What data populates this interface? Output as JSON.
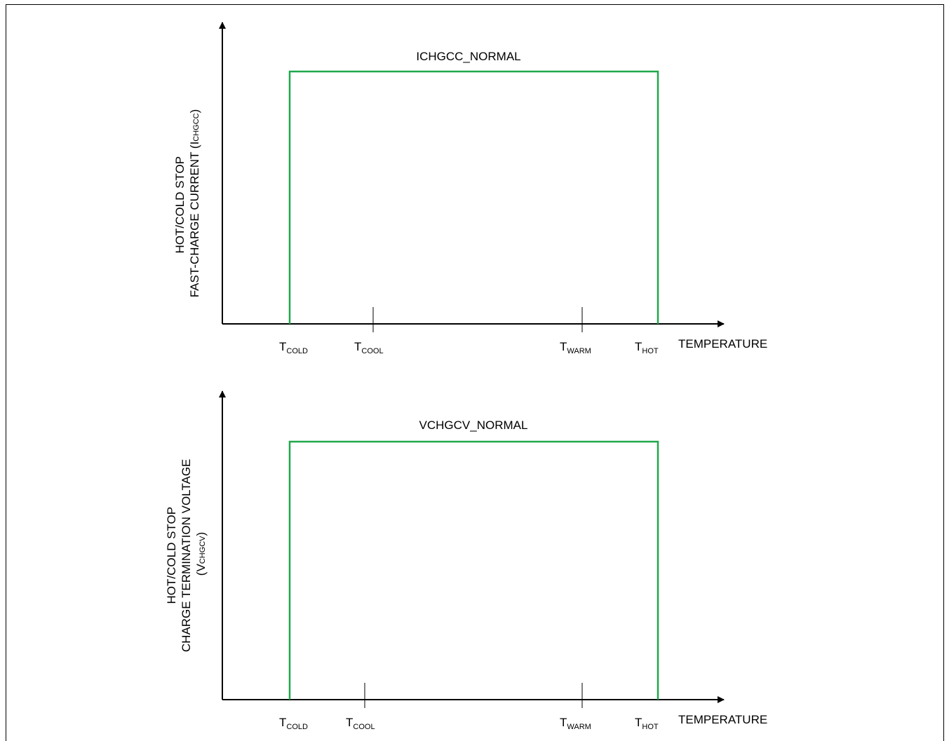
{
  "colors": {
    "curve": "#1fa84a",
    "axis": "#000000",
    "frame": "#000000"
  },
  "chart_data": [
    {
      "type": "line",
      "title": "",
      "ylabel_lines": [
        "HOT/COLD STOP",
        "FAST-CHARGE CURRENT (I"
      ],
      "ylabel_sub": "CHGCC",
      "ylabel_tail": ")",
      "xlabel": "TEMPERATURE",
      "level_label": "ICHGCC_NORMAL",
      "ticks": [
        {
          "main": "T",
          "sub": "COLD"
        },
        {
          "main": "T",
          "sub": "COOL"
        },
        {
          "main": "T",
          "sub": "WARM"
        },
        {
          "main": "T",
          "sub": "HOT"
        }
      ],
      "series": [
        {
          "x": [
            "T_COLD",
            "T_COLD",
            "T_HOT",
            "T_HOT"
          ],
          "values": [
            0,
            1,
            1,
            0
          ]
        }
      ]
    },
    {
      "type": "line",
      "title": "",
      "ylabel_lines": [
        "HOT/COLD STOP",
        "CHARGE TERMINATION VOLTAGE",
        "(V"
      ],
      "ylabel_sub": "CHGCV",
      "ylabel_tail": ")",
      "xlabel": "TEMPERATURE",
      "level_label": "VCHGCV_NORMAL",
      "ticks": [
        {
          "main": "T",
          "sub": "COLD"
        },
        {
          "main": "T",
          "sub": "COOL"
        },
        {
          "main": "T",
          "sub": "WARM"
        },
        {
          "main": "T",
          "sub": "HOT"
        }
      ],
      "series": [
        {
          "x": [
            "T_COLD",
            "T_COLD",
            "T_HOT",
            "T_HOT"
          ],
          "values": [
            0,
            1,
            1,
            0
          ]
        }
      ]
    }
  ]
}
